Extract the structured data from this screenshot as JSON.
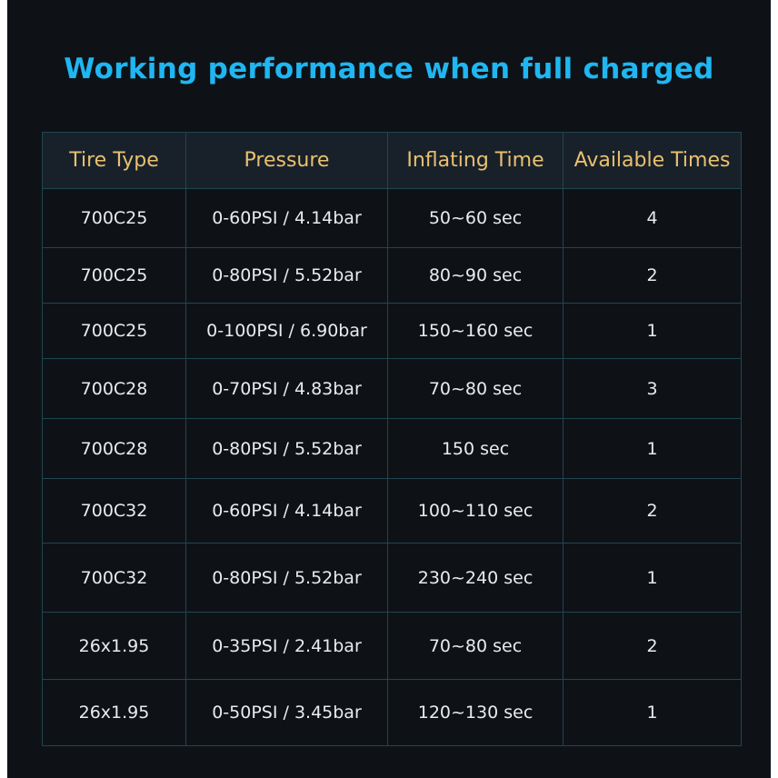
{
  "title": "Working performance when full charged",
  "table": {
    "headers": [
      "Tire Type",
      "Pressure",
      "Inflating Time",
      "Available Times"
    ],
    "rows": [
      [
        "700C25",
        "0-60PSI / 4.14bar",
        "50~60 sec",
        "4"
      ],
      [
        "700C25",
        "0-80PSI / 5.52bar",
        "80~90 sec",
        "2"
      ],
      [
        "700C25",
        "0-100PSI / 6.90bar",
        "150~160 sec",
        "1"
      ],
      [
        "700C28",
        "0-70PSI / 4.83bar",
        "70~80 sec",
        "3"
      ],
      [
        "700C28",
        "0-80PSI / 5.52bar",
        "150 sec",
        "1"
      ],
      [
        "700C32",
        "0-60PSI / 4.14bar",
        "100~110 sec",
        "2"
      ],
      [
        "700C32",
        "0-80PSI / 5.52bar",
        "230~240 sec",
        "1"
      ],
      [
        "26x1.95",
        "0-35PSI / 2.41bar",
        "70~80 sec",
        "2"
      ],
      [
        "26x1.95",
        "0-50PSI / 3.45bar",
        "120~130 sec",
        "1"
      ]
    ]
  },
  "colors": {
    "title": "#1fb6f2",
    "header_text": "#e9c070",
    "background": "#0e1216",
    "border": "#1f4650"
  }
}
